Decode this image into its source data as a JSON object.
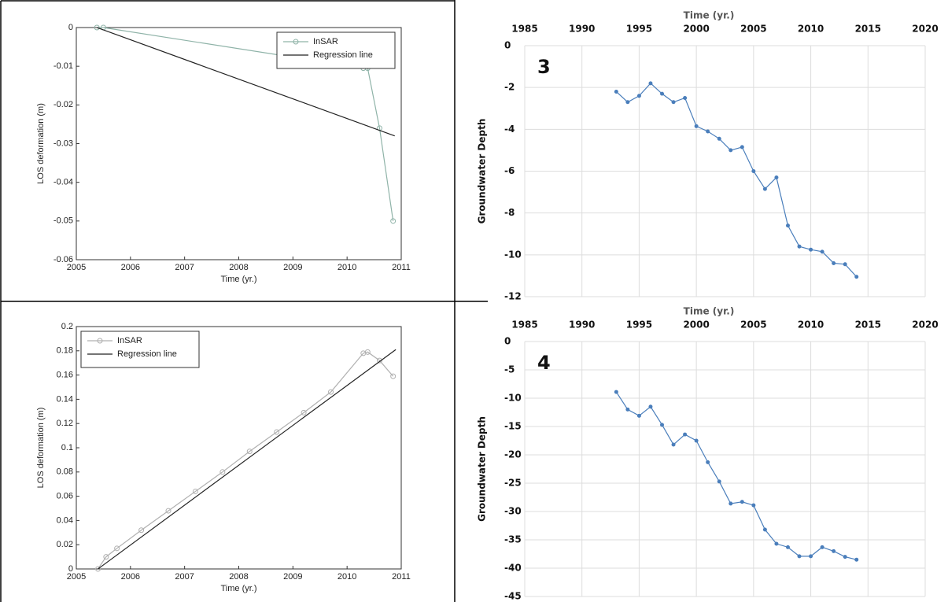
{
  "chart_data": [
    {
      "type": "line",
      "xlabel": "Time (yr.)",
      "ylabel": "LOS deformation (m)",
      "xlim": [
        2005,
        2011
      ],
      "xticks": [
        2005,
        2006,
        2007,
        2008,
        2009,
        2010,
        2011
      ],
      "ylim": [
        -0.06,
        0
      ],
      "yticks": [
        0,
        -0.01,
        -0.02,
        -0.03,
        -0.04,
        -0.05,
        -0.06
      ],
      "grid": false,
      "legend": "upper right",
      "series": [
        {
          "name": "InSAR",
          "color": "#8fb3a8",
          "marker": "o",
          "x": [
            2005.38,
            2005.5,
            2010.3,
            2010.38,
            2010.6,
            2010.85
          ],
          "values": [
            0,
            0,
            -0.0105,
            -0.0105,
            -0.026,
            -0.05
          ]
        },
        {
          "name": "Regression line",
          "color": "#222222",
          "marker": "none",
          "x": [
            2005.38,
            2010.88
          ],
          "values": [
            0,
            -0.028
          ]
        }
      ]
    },
    {
      "type": "line",
      "xlabel": "Time (yr.)",
      "ylabel": "LOS deformation (m)",
      "xlim": [
        2005,
        2011
      ],
      "xticks": [
        2005,
        2006,
        2007,
        2008,
        2009,
        2010,
        2011
      ],
      "ylim": [
        0,
        0.2
      ],
      "yticks": [
        0,
        0.02,
        0.04,
        0.06,
        0.08,
        0.1,
        0.12,
        0.14,
        0.16,
        0.18,
        0.2
      ],
      "grid": false,
      "legend": "upper left",
      "series": [
        {
          "name": "InSAR",
          "color": "#b0b0b0",
          "marker": "o",
          "x": [
            2005.4,
            2005.55,
            2005.75,
            2006.2,
            2006.7,
            2007.2,
            2007.7,
            2008.2,
            2008.7,
            2009.2,
            2009.7,
            2010.3,
            2010.38,
            2010.6,
            2010.85
          ],
          "values": [
            0,
            0.01,
            0.017,
            0.032,
            0.048,
            0.064,
            0.08,
            0.097,
            0.113,
            0.129,
            0.146,
            0.178,
            0.179,
            0.172,
            0.159
          ]
        },
        {
          "name": "Regression line",
          "color": "#222222",
          "marker": "none",
          "x": [
            2005.4,
            2010.9
          ],
          "values": [
            0,
            0.181
          ]
        }
      ]
    },
    {
      "type": "line",
      "xlabel": "Time (yr.)",
      "ylabel": "Groundwater Depth",
      "annotation": "3",
      "xlim": [
        1985,
        2020
      ],
      "xticks": [
        1985,
        1990,
        1995,
        2000,
        2005,
        2010,
        2015,
        2020
      ],
      "ylim": [
        -12,
        0
      ],
      "yticks": [
        0,
        -2,
        -4,
        -6,
        -8,
        -10,
        -12
      ],
      "grid": true,
      "color": "#4a7ebb",
      "x": [
        1993,
        1994,
        1995,
        1996,
        1997,
        1998,
        1999,
        2000,
        2001,
        2002,
        2003,
        2004,
        2005,
        2006,
        2007,
        2008,
        2009,
        2010,
        2011,
        2012,
        2013,
        2014
      ],
      "values": [
        -2.2,
        -2.7,
        -2.4,
        -1.8,
        -2.3,
        -2.7,
        -2.5,
        -3.85,
        -4.1,
        -4.45,
        -5.0,
        -4.85,
        -6.0,
        -6.85,
        -6.3,
        -8.6,
        -9.6,
        -9.75,
        -9.85,
        -10.4,
        -10.45,
        -11.05
      ]
    },
    {
      "type": "line",
      "xlabel": "Time (yr.)",
      "ylabel": "Groundwater Depth",
      "annotation": "4",
      "xlim": [
        1985,
        2020
      ],
      "xticks": [
        1985,
        1990,
        1995,
        2000,
        2005,
        2010,
        2015,
        2020
      ],
      "ylim": [
        -45,
        0
      ],
      "yticks": [
        0,
        -5,
        -10,
        -15,
        -20,
        -25,
        -30,
        -35,
        -40,
        -45
      ],
      "grid": true,
      "color": "#4a7ebb",
      "x": [
        1993,
        1994,
        1995,
        1996,
        1997,
        1998,
        1999,
        2000,
        2001,
        2002,
        2003,
        2004,
        2005,
        2006,
        2007,
        2008,
        2009,
        2010,
        2011,
        2012,
        2013,
        2014
      ],
      "values": [
        -8.9,
        -12,
        -13.1,
        -11.5,
        -14.7,
        -18.2,
        -16.4,
        -17.5,
        -21.3,
        -24.7,
        -28.6,
        -28.3,
        -28.9,
        -33.2,
        -35.7,
        -36.3,
        -37.9,
        -37.9,
        -36.3,
        -37,
        -38,
        -38.5
      ]
    }
  ]
}
